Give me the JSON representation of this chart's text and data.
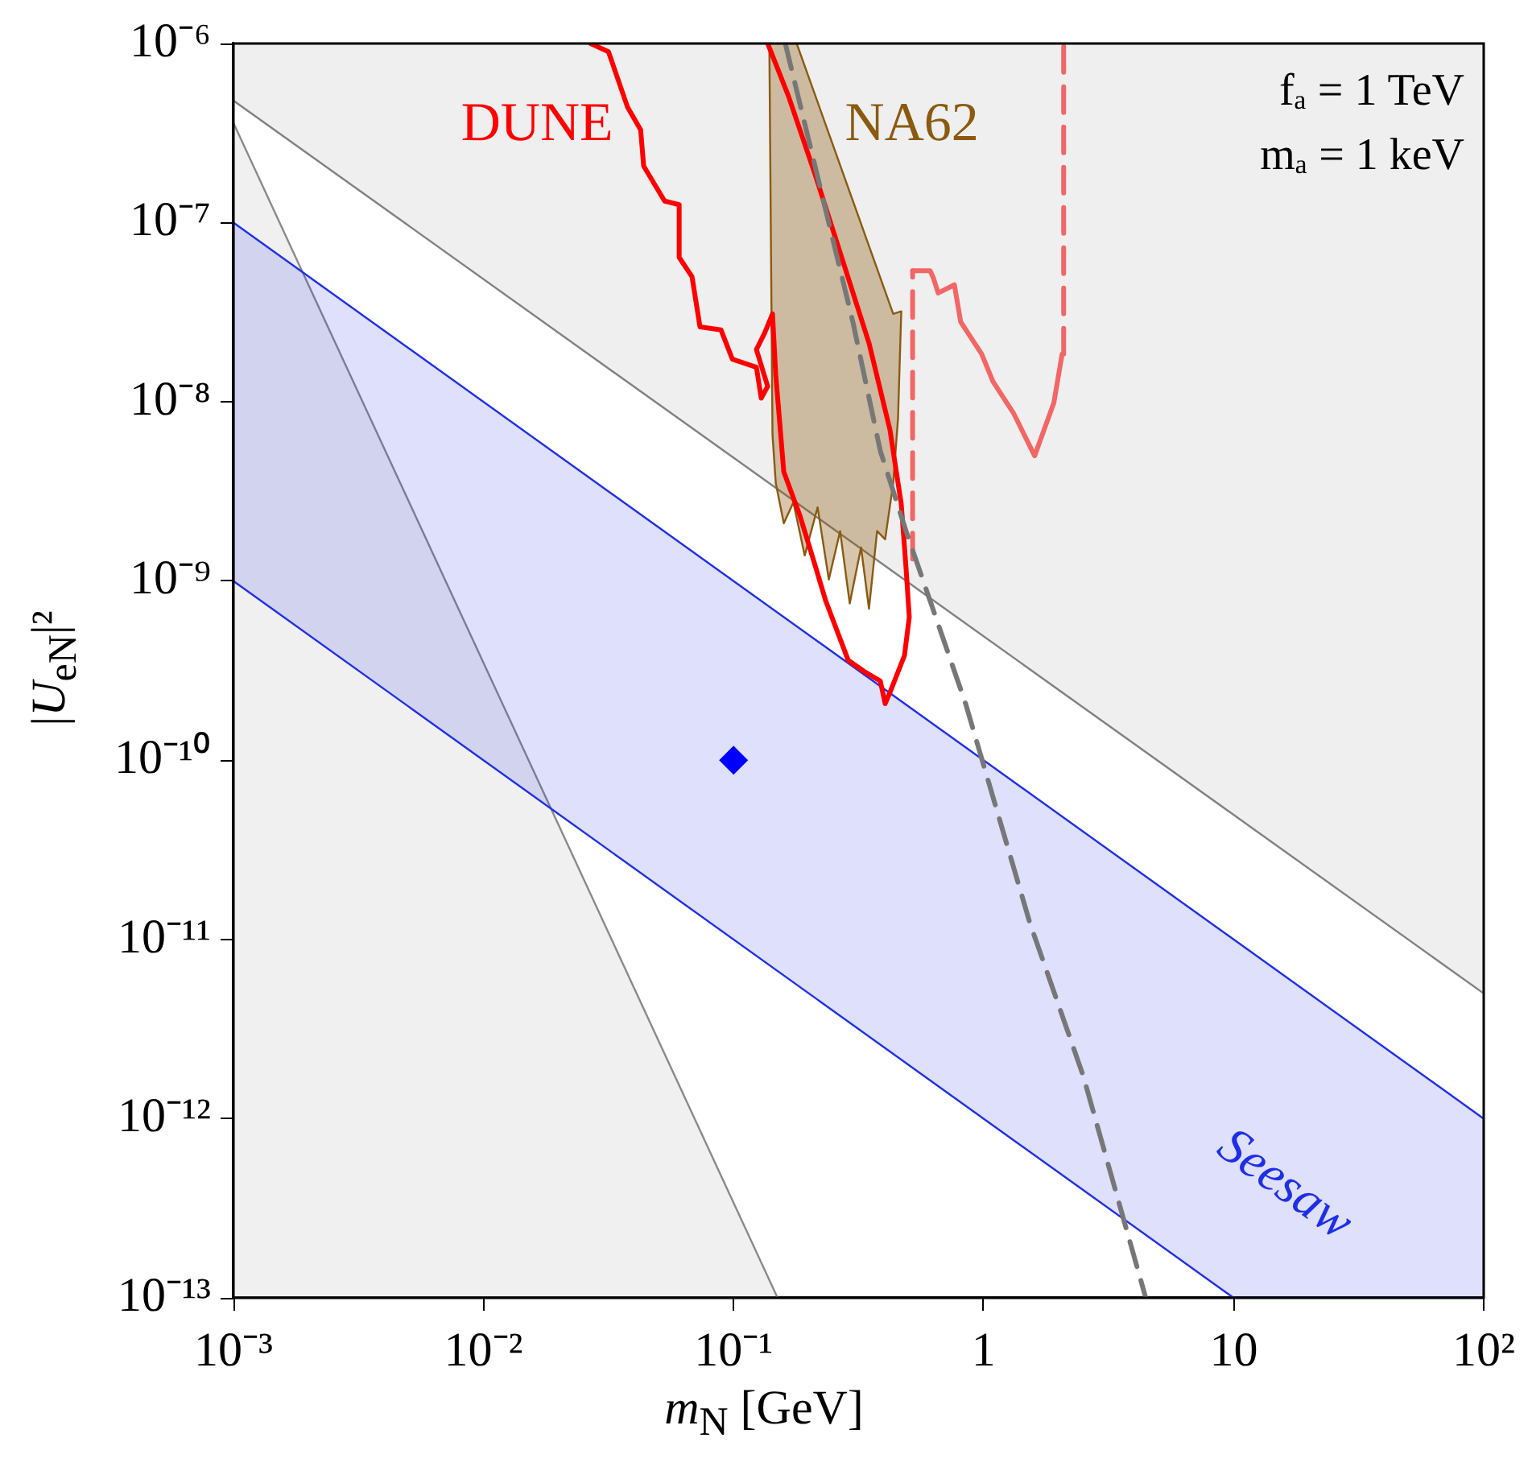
{
  "chart_data": {
    "type": "line",
    "xlabel": "m$_{N}$ [GeV]",
    "ylabel": "|U$_{eN}$|²",
    "log": "xy",
    "legend": false,
    "xlim": [
      0.001,
      100
    ],
    "ylim": [
      1e-13,
      1e-06
    ],
    "xticks": [
      {
        "value": 0.001,
        "label": "10⁻³"
      },
      {
        "value": 0.01,
        "label": "10⁻²"
      },
      {
        "value": 0.1,
        "label": "10⁻¹"
      },
      1,
      10,
      {
        "value": 100,
        "label": "10²"
      }
    ],
    "yticks": [
      {
        "value": 1e-13,
        "label": "10⁻¹³"
      },
      {
        "value": 1e-12,
        "label": "10⁻¹²"
      },
      {
        "value": 1e-11,
        "label": "10⁻¹¹"
      },
      {
        "value": 1e-10,
        "label": "10⁻¹⁰"
      },
      {
        "value": 1e-09,
        "label": "10⁻⁹"
      },
      {
        "value": 1e-08,
        "label": "10⁻⁸"
      },
      {
        "value": 1e-07,
        "label": "10⁻⁷"
      },
      {
        "value": 1e-06,
        "label": "10⁻⁶"
      }
    ],
    "annotations": [
      "fₐ = 1 TeV",
      "mₐ = 1 keV"
    ],
    "series": [
      {
        "type": "area",
        "color": "#808080",
        "x": [
          0.001,
          100,
          100,
          0.001
        ],
        "values": [
          4.8e-07,
          5e-12,
          1e-06,
          1e-06
        ]
      },
      {
        "type": "area",
        "color": "#8a8a8a",
        "x": [
          0.001,
          0.15,
          0.001
        ],
        "values": [
          3.6e-07,
          1e-13,
          1e-13
        ]
      },
      {
        "type": "area",
        "name": "Seesaw",
        "color": "#1f2fe8",
        "x": [
          0.001,
          100,
          100,
          10,
          0.001
        ],
        "values": [
          1e-07,
          1e-12,
          1e-13,
          1e-13,
          1e-09
        ]
      },
      {
        "type": "area",
        "name": "NA62",
        "color": "#8b5a10",
        "x": [
          0.1788,
          0.435,
          0.4684,
          0.4546,
          0.435,
          0.4038,
          0.375,
          0.348,
          0.3234,
          0.2915,
          0.2667,
          0.2404,
          0.2168,
          0.1925,
          0.1735,
          0.1588,
          0.1475,
          0.1431,
          0.139
        ],
        "values": [
          1e-06,
          3.1e-08,
          3.2e-08,
          8.07e-09,
          3.52e-09,
          1.71e-09,
          1.9e-09,
          7e-10,
          1.54e-09,
          7.5e-10,
          1.9e-09,
          1.02e-09,
          2.58e-09,
          1.39e-09,
          2.75e-09,
          2.1e-09,
          3.52e-09,
          6.56e-09,
          1e-06
        ]
      },
      {
        "type": "line",
        "name": "DUNE",
        "color": "#ff0000",
        "x": [
          0.0268,
          0.0316,
          0.0377,
          0.0425,
          0.0437,
          0.053,
          0.0606,
          0.0606,
          0.0682,
          0.0734,
          0.0891,
          0.0989,
          0.1234,
          0.129,
          0.1369,
          0.1234,
          0.1329,
          0.1431,
          0.1475,
          0.1588,
          0.184,
          0.2135,
          0.2333,
          0.2872,
          0.333,
          0.3862,
          0.4038,
          0.4221,
          0.4826,
          0.5043,
          0.4896,
          0.4684,
          0.4221,
          0.348,
          0.2706,
          0.2135,
          0.166,
          0.1369
        ],
        "values": [
          1e-06,
          9e-07,
          4.4e-07,
          3.3e-07,
          2.07e-07,
          1.32e-07,
          1.26e-07,
          6.4e-08,
          5e-08,
          2.62e-08,
          2.52e-08,
          1.73e-08,
          1.56e-08,
          1.05e-08,
          1.22e-08,
          1.96e-08,
          2.41e-08,
          3.1e-08,
          1.41e-08,
          4.07e-09,
          2.33e-09,
          1.18e-09,
          7.8e-10,
          3.62e-10,
          3.13e-10,
          2.77e-10,
          2.07e-10,
          2.39e-10,
          3.85e-10,
          6.3e-10,
          1.18e-09,
          2.69e-09,
          6.98e-09,
          2.13e-08,
          6.4e-08,
          1.8e-07,
          5.06e-07,
          1e-06
        ]
      },
      {
        "type": "line",
        "color": "#f26666",
        "x": [
          0.52,
          0.611,
          0.63,
          0.658,
          0.764,
          0.81,
          0.982,
          1.09,
          1.32,
          1.6,
          1.91,
          2.06
        ],
        "values": [
          5.4e-08,
          5.4e-08,
          4.9e-08,
          4.05e-08,
          4.5e-08,
          2.79e-08,
          1.85e-08,
          1.3e-08,
          8.6e-09,
          5e-09,
          9.9e-09,
          1.85e-08
        ]
      },
      {
        "type": "line",
        "color": "#f26666",
        "line_style": "dashed",
        "x": [
          0.52,
          0.52,
          1,
          2.09,
          2.09
        ],
        "values": [
          1.33e-09,
          5.4e-08,
          null,
          1.85e-08,
          1e-06
        ]
      },
      {
        "type": "line",
        "color": "#777777",
        "line_style": "dashed",
        "x": [
          0.161,
          0.3,
          0.3862,
          0.4896,
          0.847,
          1.53,
          2.5,
          4.45
        ],
        "values": [
          1e-06,
          2.79e-08,
          5.33e-09,
          1.9e-09,
          2.07e-10,
          1.24e-11,
          1.74e-12,
          1e-13
        ]
      },
      {
        "type": "scatter",
        "marker": "diamond",
        "color": "#0000ff",
        "x": [
          0.1
        ],
        "values": [
          1e-10
        ]
      }
    ]
  }
}
